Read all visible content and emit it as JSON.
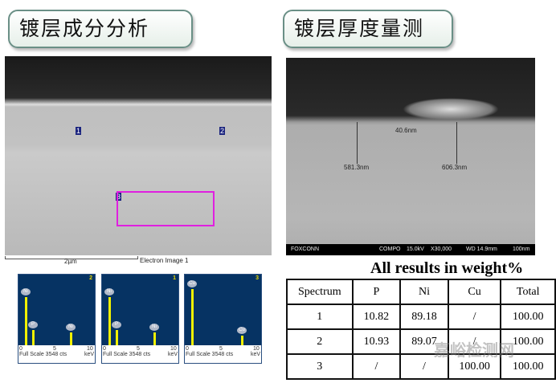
{
  "titles": {
    "left": "镀层成分分析",
    "right": "镀层厚度量测"
  },
  "sem_left": {
    "markers": [
      "1",
      "2",
      "3"
    ],
    "scale": "2µm",
    "caption": "Electron Image 1"
  },
  "sem_right": {
    "measurements": [
      "40.6nm",
      "581.3nm",
      "606.3nm"
    ],
    "bar": {
      "brand": "FOXCONN",
      "mode": "COMPO",
      "kv": "15.0kV",
      "mag": "X30,000",
      "wd": "WD 14.9mm",
      "scale": "100nm"
    }
  },
  "spectra": [
    {
      "id": "2",
      "peaks": [
        "Ni",
        "P",
        "Ni"
      ],
      "ticks": [
        "0",
        "5",
        "10"
      ],
      "footer": "Full Scale 3548 cts",
      "unit": "keV"
    },
    {
      "id": "1",
      "peaks": [
        "Ni",
        "P",
        "Ni"
      ],
      "ticks": [
        "0",
        "5",
        "10"
      ],
      "footer": "Full Scale 3548 cts",
      "unit": "keV"
    },
    {
      "id": "3",
      "peaks": [
        "Cu",
        "Cu"
      ],
      "ticks": [
        "0",
        "5",
        "10"
      ],
      "footer": "Full Scale 3548 cts",
      "unit": "keV"
    }
  ],
  "table": {
    "title": "All results in weight%",
    "headers": [
      "Spectrum",
      "P",
      "Ni",
      "Cu",
      "Total"
    ],
    "rows": [
      [
        "1",
        "10.82",
        "89.18",
        "/",
        "100.00"
      ],
      [
        "2",
        "10.93",
        "89.07",
        "/",
        "100.00"
      ],
      [
        "3",
        "/",
        "/",
        "100.00",
        "100.00"
      ]
    ]
  },
  "watermark": "嘉峪检测网"
}
